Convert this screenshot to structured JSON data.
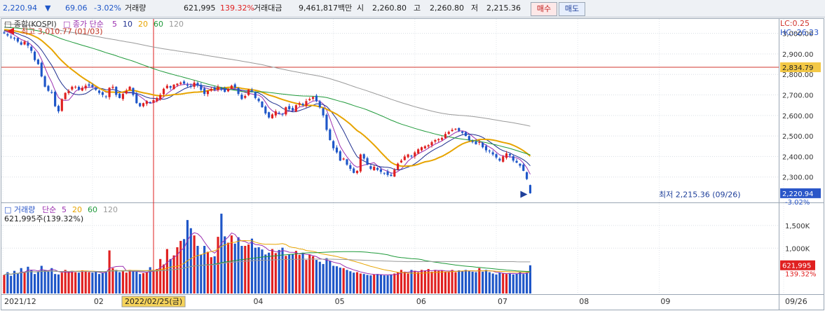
{
  "header": {
    "price": "2,220.94",
    "down_arrow": "▼",
    "change": "69.06",
    "change_pct": "-3.02%",
    "volume_label": "거래량",
    "volume": "621,995",
    "volume_pct": "139.32%",
    "amount_label": "거래대금",
    "amount": "9,461,817백만",
    "open_label": "시",
    "open": "2,260.80",
    "high_label": "고",
    "high": "2,260.80",
    "low_label": "저",
    "low": "2,215.36",
    "buy_label": "매수",
    "sell_label": "매도"
  },
  "colors": {
    "up": "#e02020",
    "down": "#1e56c8",
    "ma5": "#9b2fb0",
    "ma10": "#1f2f8f",
    "ma20": "#e7a400",
    "ma60": "#1f9a3a",
    "ma120": "#9a9a9a"
  },
  "chart_data": [
    {
      "type": "candlestick",
      "legend": {
        "index": "종합(KOSPI)",
        "title": "종가 단순",
        "periods": [
          "5",
          "10",
          "20",
          "60",
          "120"
        ]
      },
      "corner": {
        "lc": "LC:0.25",
        "hc": "HC:-26.23"
      },
      "ylim": [
        2200,
        3050
      ],
      "yticks": [
        "3,000.00",
        "2,900.00",
        "2,800.00",
        "2,700.00",
        "2,600.00",
        "2,500.00",
        "2,400.00",
        "2,300.00"
      ],
      "ytick_values": [
        3000,
        2900,
        2800,
        2700,
        2600,
        2500,
        2400,
        2300
      ],
      "hline": {
        "value": 2834.79,
        "label": "2,834.79"
      },
      "last": {
        "value": 2220.94,
        "label": "2,220.94",
        "pct": "-3.02%"
      },
      "annotations": {
        "max": {
          "text": "최고 3,010.77 (01/03)",
          "value": 3010.77
        },
        "min": {
          "text": "최저 2,215.36 (09/26)",
          "value": 2215.36
        }
      },
      "closes": [
        3000,
        2990,
        2980,
        2975,
        2960,
        2945,
        2960,
        2940,
        2915,
        2870,
        2850,
        2790,
        2740,
        2720,
        2710,
        2645,
        2620,
        2680,
        2710,
        2720,
        2740,
        2740,
        2725,
        2735,
        2745,
        2745,
        2740,
        2725,
        2710,
        2700,
        2690,
        2735,
        2740,
        2700,
        2685,
        2705,
        2720,
        2740,
        2700,
        2660,
        2645,
        2660,
        2670,
        2660,
        2675,
        2685,
        2700,
        2730,
        2745,
        2735,
        2750,
        2755,
        2760,
        2755,
        2745,
        2740,
        2760,
        2745,
        2725,
        2705,
        2720,
        2730,
        2725,
        2740,
        2725,
        2715,
        2730,
        2745,
        2735,
        2705,
        2680,
        2695,
        2725,
        2720,
        2685,
        2670,
        2640,
        2610,
        2590,
        2605,
        2620,
        2610,
        2605,
        2640,
        2630,
        2625,
        2650,
        2660,
        2650,
        2670,
        2680,
        2690,
        2670,
        2640,
        2600,
        2530,
        2480,
        2440,
        2420,
        2380,
        2390,
        2360,
        2340,
        2320,
        2330,
        2410,
        2390,
        2360,
        2340,
        2350,
        2335,
        2325,
        2320,
        2310,
        2305,
        2335,
        2365,
        2380,
        2400,
        2410,
        2400,
        2420,
        2435,
        2445,
        2450,
        2455,
        2470,
        2480,
        2485,
        2490,
        2510,
        2520,
        2530,
        2535,
        2525,
        2515,
        2500,
        2480,
        2470,
        2460,
        2470,
        2445,
        2430,
        2425,
        2410,
        2395,
        2380,
        2400,
        2415,
        2405,
        2380,
        2370,
        2355,
        2330,
        2290,
        2220.94
      ]
    },
    {
      "type": "bar",
      "legend": {
        "title": "거래량",
        "ma_label": "단순",
        "periods": [
          "5",
          "20",
          "60",
          "120"
        ],
        "info": "621,995주(139.32%)"
      },
      "ylim": [
        0,
        1900000
      ],
      "yticks": [
        "1,500K",
        "1,000K"
      ],
      "ytick_values": [
        1500000,
        1000000
      ],
      "last": {
        "value": 621995,
        "label": "621,995",
        "pct": "139.32%"
      },
      "values": [
        410000,
        470000,
        390000,
        500000,
        440000,
        560000,
        470000,
        590000,
        520000,
        430000,
        480000,
        610000,
        520000,
        480000,
        560000,
        430000,
        420000,
        460000,
        520000,
        480000,
        500000,
        470000,
        460000,
        510000,
        500000,
        470000,
        460000,
        480000,
        430000,
        450000,
        490000,
        950000,
        560000,
        520000,
        470000,
        490000,
        460000,
        520000,
        500000,
        480000,
        430000,
        450000,
        470000,
        580000,
        520000,
        540000,
        760000,
        640000,
        980000,
        760000,
        840000,
        1020000,
        1160000,
        1200000,
        1620000,
        1440000,
        1280000,
        1050000,
        860000,
        1050000,
        920000,
        800000,
        820000,
        1250000,
        1760000,
        1260000,
        1120000,
        1280000,
        1100000,
        1240000,
        1050000,
        1050000,
        1080000,
        1210000,
        1010000,
        1020000,
        970000,
        860000,
        900000,
        980000,
        890000,
        960000,
        1010000,
        830000,
        860000,
        870000,
        940000,
        850000,
        900000,
        740000,
        860000,
        820000,
        740000,
        700000,
        650000,
        780000,
        720000,
        610000,
        600000,
        570000,
        560000,
        520000,
        490000,
        460000,
        470000,
        440000,
        430000,
        410000,
        400000,
        420000,
        430000,
        420000,
        400000,
        400000,
        420000,
        440000,
        470000,
        520000,
        480000,
        440000,
        520000,
        500000,
        470000,
        520000,
        500000,
        540000,
        480000,
        520000,
        500000,
        510000,
        480000,
        470000,
        520000,
        470000,
        510000,
        490000,
        520000,
        500000,
        480000,
        470000,
        560000,
        480000,
        520000,
        470000,
        440000,
        420000,
        460000,
        440000,
        430000,
        450000,
        420000,
        440000,
        470000,
        430000,
        460000,
        621995
      ]
    }
  ],
  "xaxis": {
    "labels": [
      "2021/12",
      "02",
      "04",
      "05",
      "06",
      "07",
      "08",
      "09",
      "09/26"
    ],
    "label_index": [
      0,
      26,
      73,
      97,
      121,
      145,
      169,
      193,
      221
    ],
    "cursor_label": "2022/02/25(금)",
    "cursor_index": 44
  }
}
